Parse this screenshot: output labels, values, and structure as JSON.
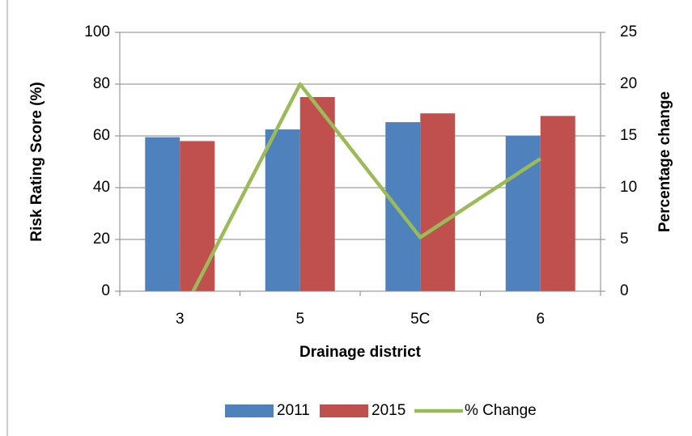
{
  "chart_data": {
    "type": "bar",
    "x_label": "Drainage district",
    "y_label": "Risk Rating Score (%)",
    "y2_label": "Percentage change",
    "categories": [
      "3",
      "5",
      "5C",
      "6"
    ],
    "series": [
      {
        "name": "2011",
        "color": "#4f81bd",
        "values": [
          59.5,
          62.5,
          65.3,
          60
        ]
      },
      {
        "name": "2015",
        "color": "#c0504d",
        "values": [
          58,
          75,
          68.7,
          67.7
        ]
      },
      {
        "name": "% Change",
        "color": "#9bbb59",
        "type": "line",
        "axis": "y2",
        "values": [
          -2.5,
          20,
          5.2,
          12.8
        ]
      }
    ],
    "ylim": [
      0,
      100
    ],
    "yticks": [
      0,
      20,
      40,
      60,
      80,
      100
    ],
    "y2lim": [
      0,
      25
    ],
    "y2ticks": [
      0,
      5,
      10,
      15,
      20,
      25
    ],
    "grid": true,
    "legend": "bottom"
  }
}
